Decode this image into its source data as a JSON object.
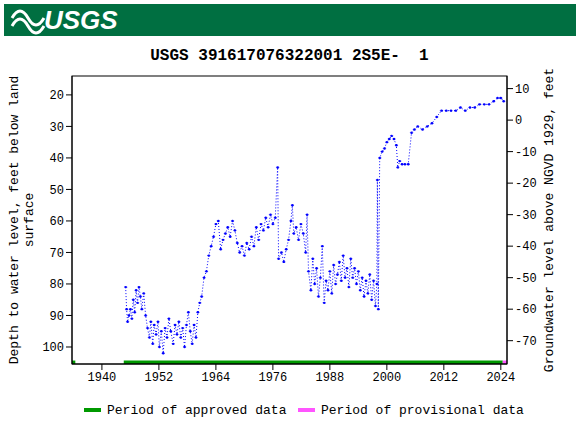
{
  "header": "USGS",
  "chart_data": {
    "type": "line",
    "title": "USGS 391617076322001 2S5E-  1",
    "y_label": [
      "Depth to water level, feet below land",
      "surface"
    ],
    "y2_label": "Groundwater level above NGVD 1929, feet",
    "x": [
      1945.0,
      1945.2,
      1945.4,
      1945.7,
      1946.0,
      1946.3,
      1946.6,
      1946.9,
      1947.2,
      1947.5,
      1947.8,
      1948.1,
      1948.4,
      1948.8,
      1949.2,
      1949.6,
      1950.0,
      1950.3,
      1950.7,
      1951.0,
      1951.4,
      1951.8,
      1952.1,
      1952.5,
      1952.9,
      1953.3,
      1953.7,
      1954.1,
      1954.5,
      1955.0,
      1955.4,
      1955.8,
      1956.2,
      1956.6,
      1957.0,
      1957.4,
      1957.8,
      1958.2,
      1958.6,
      1959.0,
      1959.4,
      1959.8,
      1960.2,
      1960.6,
      1961.0,
      1961.5,
      1962.0,
      1962.5,
      1963.0,
      1963.5,
      1964.0,
      1964.5,
      1965.0,
      1965.5,
      1966.0,
      1966.5,
      1967.0,
      1967.5,
      1968.0,
      1968.5,
      1969.0,
      1969.5,
      1970.0,
      1970.5,
      1971.0,
      1971.5,
      1972.0,
      1972.5,
      1973.0,
      1973.5,
      1974.0,
      1974.5,
      1975.0,
      1975.5,
      1976.0,
      1976.5,
      1977.0,
      1977.2,
      1977.8,
      1978.3,
      1978.8,
      1979.3,
      1979.8,
      1980.1,
      1980.4,
      1980.9,
      1981.4,
      1981.9,
      1982.4,
      1982.9,
      1983.2,
      1983.5,
      1984.0,
      1984.4,
      1984.8,
      1985.2,
      1985.6,
      1986.0,
      1986.4,
      1986.8,
      1987.2,
      1987.6,
      1988.0,
      1988.4,
      1988.8,
      1989.2,
      1989.6,
      1990.0,
      1990.4,
      1990.8,
      1991.2,
      1991.6,
      1992.0,
      1992.4,
      1992.8,
      1993.2,
      1993.6,
      1994.0,
      1994.4,
      1994.8,
      1995.2,
      1995.6,
      1996.0,
      1996.4,
      1996.8,
      1997.2,
      1997.6,
      1997.9,
      1998.0,
      1998.2,
      1998.5,
      1999.0,
      1999.5,
      2000.0,
      2000.5,
      2001.0,
      2001.5,
      2002.0,
      2002.3,
      2002.7,
      2003.2,
      2003.8,
      2004.5,
      2005.2,
      2005.8,
      2006.5,
      2007.5,
      2008.5,
      2009.5,
      2010.5,
      2011.5,
      2012.5,
      2013.5,
      2014.5,
      2015.5,
      2016.5,
      2017.5,
      2018.5,
      2019.5,
      2020.5,
      2021.5,
      2022.5,
      2023.3,
      2024.0,
      2024.6
    ],
    "values": [
      81,
      88,
      92,
      90,
      88,
      91,
      85,
      89,
      82,
      86,
      81,
      84,
      88,
      83,
      90,
      94,
      97,
      92,
      99,
      93,
      96,
      92,
      100,
      95,
      102,
      94,
      97,
      91,
      95,
      99,
      93,
      96,
      92,
      97,
      94,
      100,
      93,
      89,
      95,
      99,
      93,
      97,
      89,
      86,
      84,
      78,
      76,
      71,
      68,
      65,
      61,
      60,
      69,
      66,
      64,
      62,
      65,
      60,
      63,
      67,
      70,
      68,
      71,
      67,
      69,
      65,
      68,
      62,
      66,
      61,
      63,
      59,
      62,
      58,
      61,
      59,
      43,
      72,
      70,
      73,
      69,
      66,
      60,
      55,
      64,
      62,
      66,
      61,
      64,
      70,
      58,
      76,
      82,
      72,
      80,
      75,
      84,
      78,
      68,
      86,
      79,
      82,
      76,
      83,
      74,
      80,
      77,
      73,
      79,
      71,
      78,
      75,
      81,
      72,
      78,
      75,
      80,
      76,
      82,
      78,
      84,
      79,
      83,
      77,
      85,
      79,
      87,
      80,
      47,
      88,
      40,
      38,
      37,
      35,
      34,
      33,
      34,
      36,
      43,
      41,
      42,
      42,
      42,
      32,
      31,
      30,
      31,
      30,
      29,
      27,
      25,
      25,
      25,
      25,
      24,
      25,
      24,
      24,
      23,
      23,
      23,
      22,
      21,
      21,
      22
    ],
    "color": "#0000ff",
    "marker": "dot",
    "line_style": "dotted",
    "xlim": [
      1933.7,
      2025.3
    ],
    "xticks": [
      1940,
      1952,
      1964,
      1976,
      1988,
      2000,
      2012,
      2024
    ],
    "ylim": [
      14,
      105.4
    ],
    "yticks": [
      20,
      30,
      40,
      50,
      60,
      70,
      80,
      90,
      100
    ],
    "y2lim": [
      -77.4,
      14
    ],
    "y2ticks": [
      -70,
      -60,
      -50,
      -40,
      -30,
      -20,
      -10,
      0,
      10
    ],
    "periods": [
      {
        "label": "Period of approved data",
        "color": "#009900",
        "ranges": [
          [
            1933.7,
            1934.4
          ],
          [
            1944.6,
            2024.4
          ]
        ]
      },
      {
        "label": "Period of provisional data",
        "color": "#ff55ff",
        "ranges": [
          [
            2024.4,
            2025.3
          ]
        ]
      }
    ]
  }
}
